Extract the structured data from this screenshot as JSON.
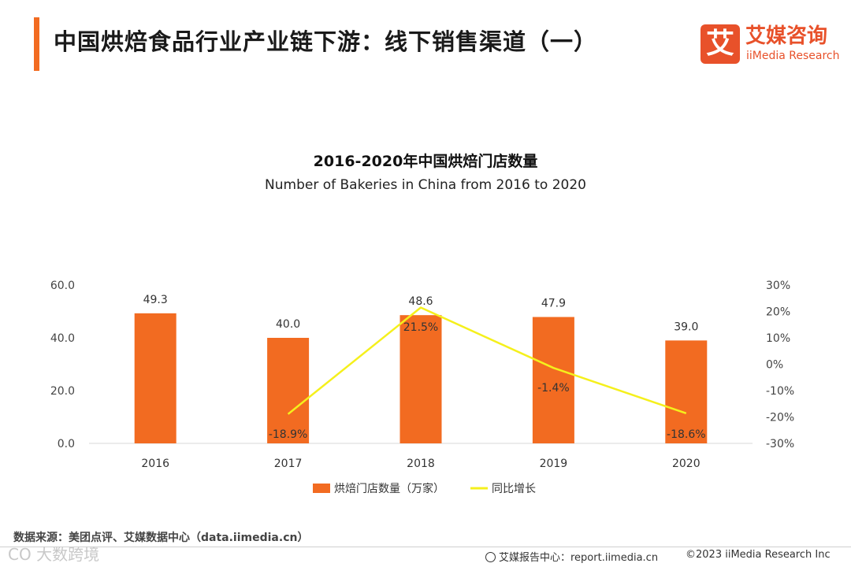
{
  "header": {
    "title": "中国烘焙食品行业产业链下游：线下销售渠道（一）"
  },
  "logo": {
    "mark": "艾",
    "cn": "艾媒咨询",
    "en": "iiMedia Research"
  },
  "chart_data": {
    "type": "bar",
    "title": "2016-2020年中国烘焙门店数量",
    "subtitle": "Number of  Bakeries in China from 2016 to 2020",
    "categories": [
      "2016",
      "2017",
      "2018",
      "2019",
      "2020"
    ],
    "series": [
      {
        "name": "烘焙门店数量（万家）",
        "type": "bar",
        "axis": "left",
        "color": "#f26b21",
        "values": [
          49.3,
          40.0,
          48.6,
          47.9,
          39.0
        ],
        "labels": [
          "49.3",
          "40.0",
          "48.6",
          "47.9",
          "39.0"
        ]
      },
      {
        "name": "同比增长",
        "type": "line",
        "axis": "right",
        "color": "#f5f01c",
        "values": [
          null,
          -18.9,
          21.5,
          -1.4,
          -18.6
        ],
        "labels": [
          "",
          "-18.9%",
          "21.5%",
          "-1.4%",
          "-18.6%"
        ]
      }
    ],
    "y_left": {
      "min": 0,
      "max": 60,
      "ticks": [
        "0.0",
        "20.0",
        "40.0",
        "60.0"
      ]
    },
    "y_right": {
      "min": -30,
      "max": 30,
      "ticks": [
        "-30%",
        "-20%",
        "-10%",
        "0%",
        "10%",
        "20%",
        "30%"
      ]
    },
    "legend_position": "bottom"
  },
  "footer": {
    "source": "数据来源：美团点评、艾媒数据中心（data.iimedia.cn）",
    "report": "艾媒报告中心：report.iimedia.cn",
    "copyright": "©2023  iiMedia Research  Inc",
    "watermark": "CO 大数跨境"
  }
}
